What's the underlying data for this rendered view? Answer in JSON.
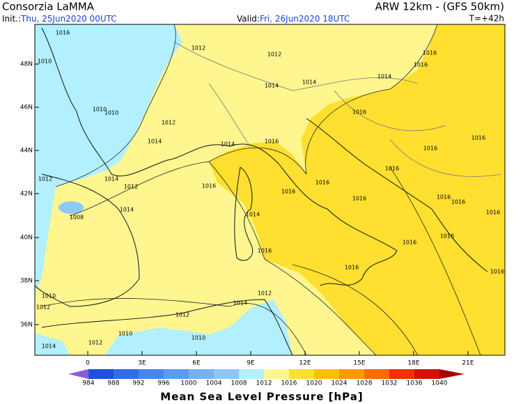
{
  "header": {
    "title": "Consorzia LaMMA",
    "model": "ARW 12km - (GFS 50km)",
    "init_label": "Init.:",
    "init": "Thu, 25Jun2020 00UTC",
    "valid_label": "Valid:",
    "valid": "Fri, 26Jun2020 18UTC",
    "lead": "T=+42h"
  },
  "map": {
    "lat_labels": [
      "48N",
      "46N",
      "44N",
      "42N",
      "40N",
      "38N",
      "36N"
    ],
    "lon_labels": [
      "0",
      "3E",
      "6E",
      "9E",
      "12E",
      "15E",
      "18E",
      "21E"
    ],
    "isobar_labels": [
      "1016",
      "1010",
      "1012",
      "1012",
      "1016",
      "1016",
      "1014",
      "1014",
      "1014",
      "1010",
      "1010",
      "1012",
      "1016",
      "1014",
      "1014",
      "1016",
      "1016",
      "1016",
      "1012",
      "1014",
      "1012",
      "1016",
      "1016",
      "1016",
      "1016",
      "1016",
      "1016",
      "1016",
      "1016",
      "1008",
      "1014",
      "1014",
      "1016",
      "1016",
      "1016",
      "1016",
      "1016",
      "1010",
      "1012",
      "1012",
      "1014",
      "1012",
      "1010",
      "1012",
      "1010",
      "1014"
    ]
  },
  "colorbar": {
    "levels": [
      984,
      988,
      992,
      996,
      1000,
      1004,
      1008,
      1012,
      1016,
      1020,
      1024,
      1028,
      1032,
      1036,
      1040
    ],
    "colors": [
      "#8c5ad8",
      "#1e50dc",
      "#2f6ee6",
      "#4486ec",
      "#5a9cf0",
      "#74b2f4",
      "#8ec8f6",
      "#b2f0ff",
      "#fff68f",
      "#ffe030",
      "#ffc000",
      "#ff9a00",
      "#ff6a00",
      "#f03000",
      "#d41000",
      "#b00000"
    ],
    "label": "Mean Sea Level Pressure [hPa]"
  }
}
